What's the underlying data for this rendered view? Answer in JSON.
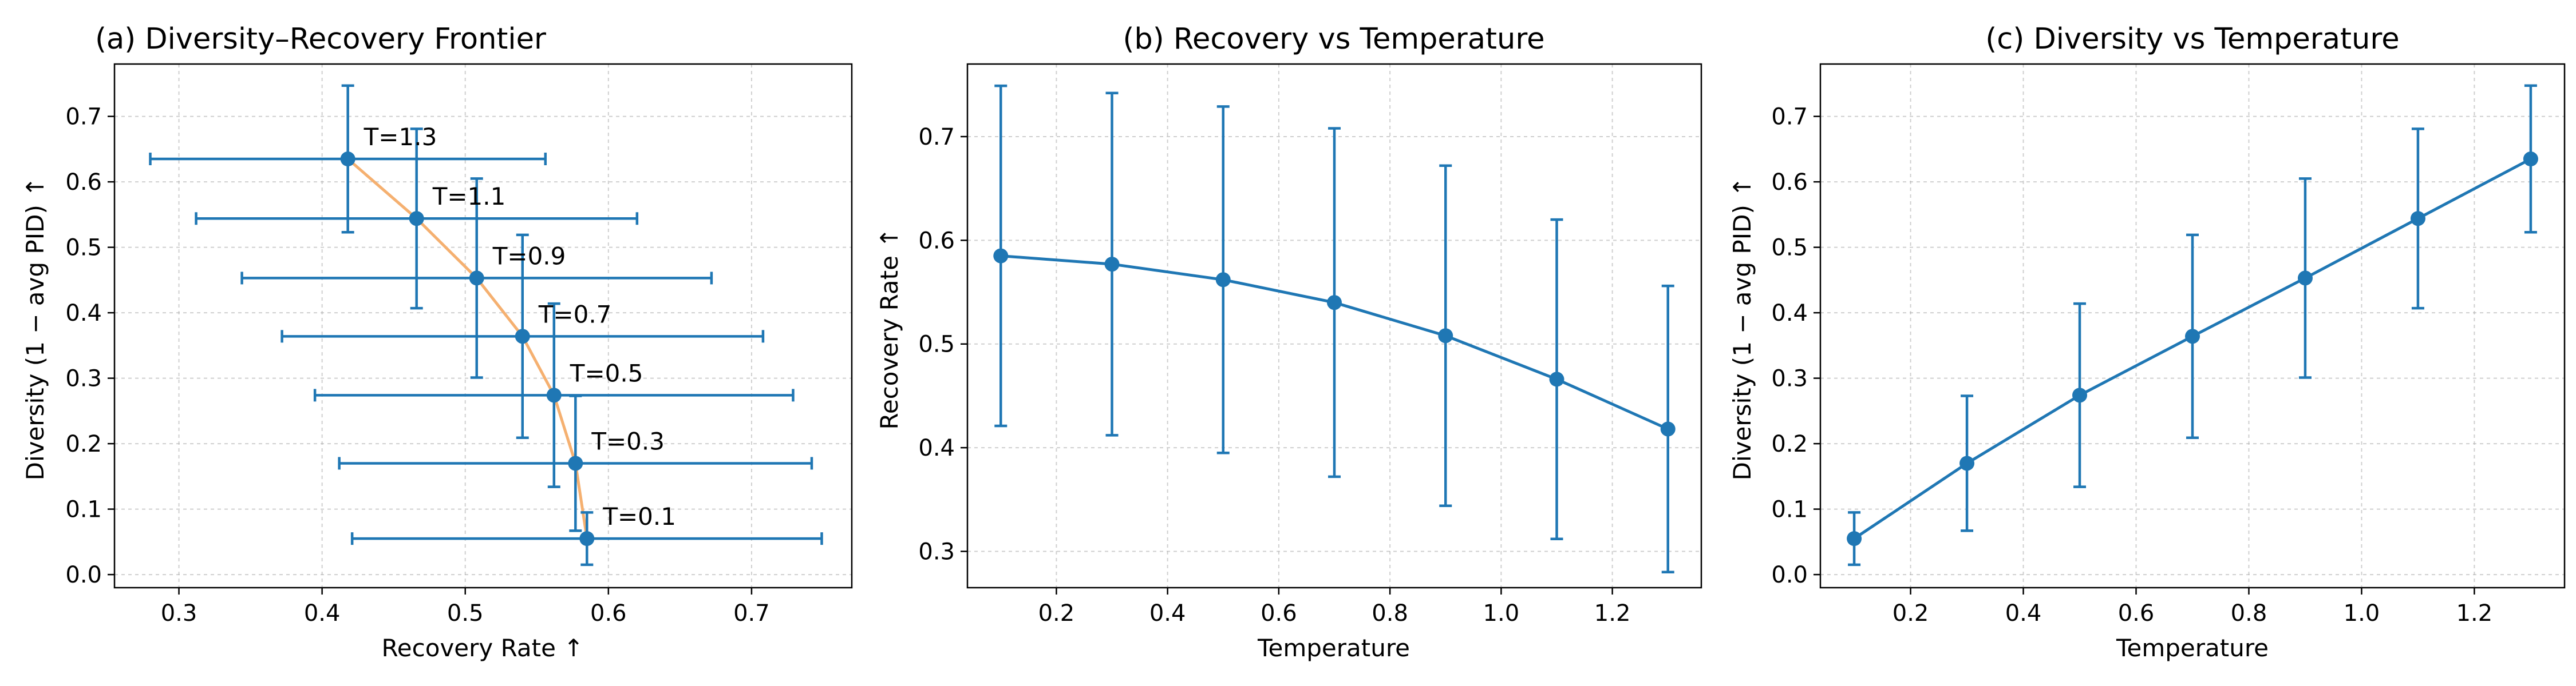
{
  "colors": {
    "series": "#1f77b4",
    "frontier": "#f5b070",
    "grid": "#b0b0b0"
  },
  "chart_data": [
    {
      "type": "scatter",
      "title": "(a) Diversity–Recovery Frontier",
      "xlabel": "Recovery Rate ↑",
      "ylabel": "Diversity (1 − avg PID) ↑",
      "xlim": [
        0.255,
        0.77
      ],
      "ylim": [
        -0.02,
        0.78
      ],
      "xticks": [
        0.3,
        0.4,
        0.5,
        0.6,
        0.7
      ],
      "yticks": [
        0.0,
        0.1,
        0.2,
        0.3,
        0.4,
        0.5,
        0.6,
        0.7
      ],
      "grid": true,
      "points": [
        {
          "label": "T=0.1",
          "x": 0.585,
          "y": 0.055,
          "xerr": 0.164,
          "yerr": 0.04
        },
        {
          "label": "T=0.3",
          "x": 0.577,
          "y": 0.17,
          "xerr": 0.165,
          "yerr": 0.103
        },
        {
          "label": "T=0.5",
          "x": 0.562,
          "y": 0.274,
          "xerr": 0.167,
          "yerr": 0.14
        },
        {
          "label": "T=0.7",
          "x": 0.54,
          "y": 0.364,
          "xerr": 0.168,
          "yerr": 0.155
        },
        {
          "label": "T=0.9",
          "x": 0.508,
          "y": 0.453,
          "xerr": 0.164,
          "yerr": 0.152
        },
        {
          "label": "T=1.1",
          "x": 0.466,
          "y": 0.544,
          "xerr": 0.154,
          "yerr": 0.137
        },
        {
          "label": "T=1.3",
          "x": 0.418,
          "y": 0.635,
          "xerr": 0.138,
          "yerr": 0.112
        }
      ]
    },
    {
      "type": "line",
      "title": "(b) Recovery vs Temperature",
      "xlabel": "Temperature",
      "ylabel": "Recovery Rate ↑",
      "xlim": [
        0.04,
        1.36
      ],
      "ylim": [
        0.265,
        0.77
      ],
      "xticks": [
        0.2,
        0.4,
        0.6,
        0.8,
        1.0,
        1.2
      ],
      "yticks": [
        0.3,
        0.4,
        0.5,
        0.6,
        0.7
      ],
      "grid": true,
      "x": [
        0.1,
        0.3,
        0.5,
        0.7,
        0.9,
        1.1,
        1.3
      ],
      "values": [
        0.585,
        0.577,
        0.562,
        0.54,
        0.508,
        0.466,
        0.418
      ],
      "err": [
        0.164,
        0.165,
        0.167,
        0.168,
        0.164,
        0.154,
        0.138
      ]
    },
    {
      "type": "line",
      "title": "(c) Diversity vs Temperature",
      "xlabel": "Temperature",
      "ylabel": "Diversity (1 − avg PID) ↑",
      "xlim": [
        0.04,
        1.36
      ],
      "ylim": [
        -0.02,
        0.78
      ],
      "xticks": [
        0.2,
        0.4,
        0.6,
        0.8,
        1.0,
        1.2
      ],
      "yticks": [
        0.0,
        0.1,
        0.2,
        0.3,
        0.4,
        0.5,
        0.6,
        0.7
      ],
      "grid": true,
      "x": [
        0.1,
        0.3,
        0.5,
        0.7,
        0.9,
        1.1,
        1.3
      ],
      "values": [
        0.055,
        0.17,
        0.274,
        0.364,
        0.453,
        0.544,
        0.635
      ],
      "err": [
        0.04,
        0.103,
        0.14,
        0.155,
        0.152,
        0.137,
        0.112
      ]
    }
  ]
}
